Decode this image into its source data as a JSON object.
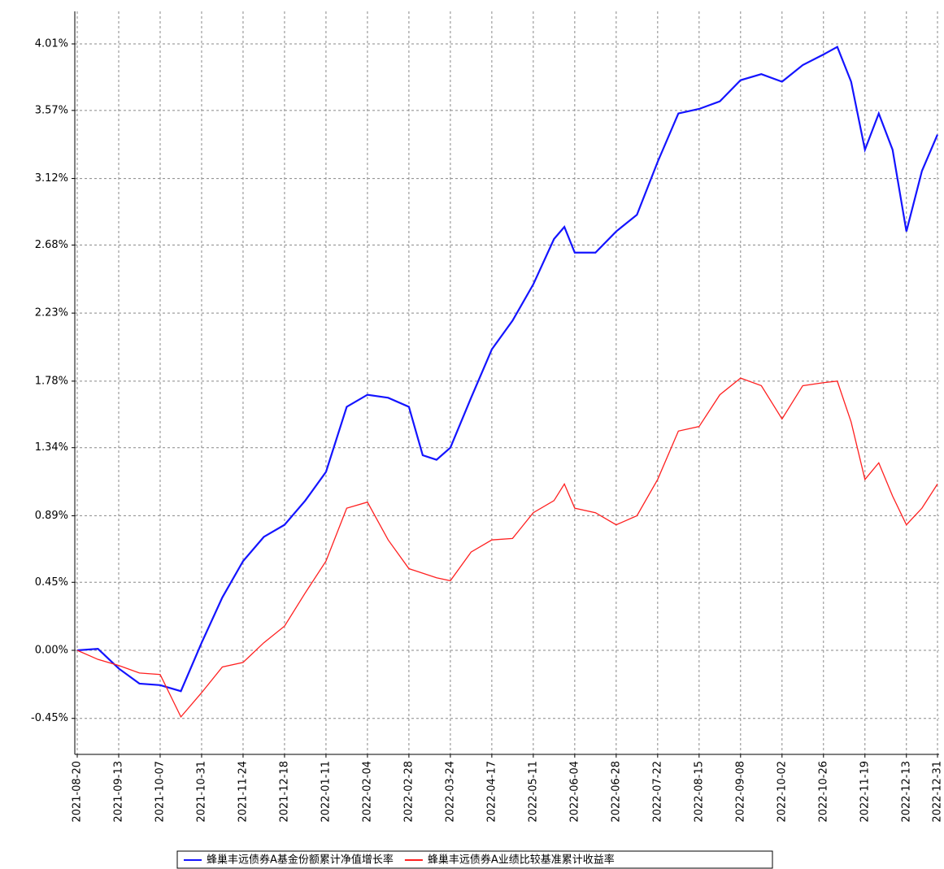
{
  "chart_data": {
    "type": "line",
    "x": [
      "2021-08-20",
      "2021-09-01",
      "2021-09-13",
      "2021-09-25",
      "2021-10-07",
      "2021-10-19",
      "2021-10-31",
      "2021-11-12",
      "2021-11-24",
      "2021-12-06",
      "2021-12-18",
      "2021-12-30",
      "2022-01-11",
      "2022-01-23",
      "2022-02-04",
      "2022-02-16",
      "2022-02-28",
      "2022-03-08",
      "2022-03-16",
      "2022-03-24",
      "2022-04-05",
      "2022-04-17",
      "2022-04-29",
      "2022-05-11",
      "2022-05-23",
      "2022-05-29",
      "2022-06-04",
      "2022-06-16",
      "2022-06-28",
      "2022-07-10",
      "2022-07-22",
      "2022-08-03",
      "2022-08-15",
      "2022-08-27",
      "2022-09-08",
      "2022-09-20",
      "2022-10-02",
      "2022-10-14",
      "2022-10-26",
      "2022-11-03",
      "2022-11-11",
      "2022-11-19",
      "2022-11-27",
      "2022-12-05",
      "2022-12-13",
      "2022-12-22",
      "2022-12-31"
    ],
    "series": [
      {
        "name": "蜂巢丰远债券A基金份额累计净值增长率",
        "color": "#1414ff",
        "values": [
          0,
          0.01,
          -0.12,
          -0.22,
          -0.23,
          -0.27,
          0.05,
          0.35,
          0.59,
          0.75,
          0.83,
          0.99,
          1.18,
          1.61,
          1.69,
          1.67,
          1.61,
          1.29,
          1.26,
          1.34,
          1.67,
          1.99,
          2.18,
          2.42,
          2.72,
          2.8,
          2.63,
          2.63,
          2.77,
          2.88,
          3.23,
          3.55,
          3.58,
          3.63,
          3.77,
          3.81,
          3.76,
          3.87,
          3.94,
          3.99,
          3.76,
          3.31,
          3.55,
          3.31,
          2.77,
          3.17,
          3.41
        ]
      },
      {
        "name": "蜂巢丰远债券A业绩比较基准累计收益率",
        "color": "#ff2020",
        "values": [
          0,
          -0.06,
          -0.1,
          -0.15,
          -0.16,
          -0.44,
          -0.28,
          -0.11,
          -0.08,
          0.05,
          0.16,
          0.38,
          0.59,
          0.94,
          0.98,
          0.73,
          0.54,
          0.51,
          0.48,
          0.46,
          0.65,
          0.73,
          0.74,
          0.91,
          0.99,
          1.1,
          0.94,
          0.91,
          0.83,
          0.89,
          1.13,
          1.45,
          1.48,
          1.69,
          1.8,
          1.75,
          1.53,
          1.75,
          1.77,
          1.78,
          1.51,
          1.13,
          1.24,
          1.02,
          0.83,
          0.94,
          1.1
        ]
      }
    ],
    "xlim": [
      "2021-08-20",
      "2022-12-31"
    ],
    "xticks": [
      "2021-08-20",
      "2021-09-13",
      "2021-10-07",
      "2021-10-31",
      "2021-11-24",
      "2021-12-18",
      "2022-01-11",
      "2022-02-04",
      "2022-02-28",
      "2022-03-24",
      "2022-04-17",
      "2022-05-11",
      "2022-06-04",
      "2022-06-28",
      "2022-07-22",
      "2022-08-15",
      "2022-09-08",
      "2022-10-02",
      "2022-10-26",
      "2022-11-19",
      "2022-12-13",
      "2022-12-31"
    ],
    "ylim": [
      -0.688,
      4.225
    ],
    "yticks": [
      {
        "value": -0.45,
        "label": "-0.45%"
      },
      {
        "value": 0,
        "label": "0.00%"
      },
      {
        "value": 0.45,
        "label": "0.45%"
      },
      {
        "value": 0.89,
        "label": "0.89%"
      },
      {
        "value": 1.34,
        "label": "1.34%"
      },
      {
        "value": 1.78,
        "label": "1.78%"
      },
      {
        "value": 2.23,
        "label": "2.23%"
      },
      {
        "value": 2.68,
        "label": "2.68%"
      },
      {
        "value": 3.12,
        "label": "3.12%"
      },
      {
        "value": 3.57,
        "label": "3.57%"
      },
      {
        "value": 4.01,
        "label": "4.01%"
      }
    ],
    "grid": true
  }
}
